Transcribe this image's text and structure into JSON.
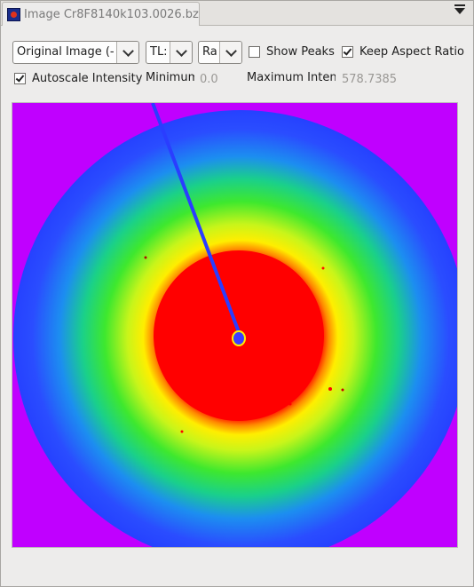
{
  "tab": {
    "title": "Image Cr8F8140k103.0026.bz2",
    "icon": "image-view-icon"
  },
  "controls": {
    "image_select": {
      "value": "Original Image (-"
    },
    "corner_select": {
      "value": "TL:"
    },
    "scale_select": {
      "value": "Ra"
    },
    "show_peaks": {
      "label": "Show Peaks",
      "checked": false
    },
    "keep_aspect": {
      "label": "Keep Aspect Ratio",
      "checked": true
    },
    "autoscale": {
      "label": "Autoscale Intensity",
      "checked": true
    },
    "minimum": {
      "label": "Minimum",
      "value": "0.0"
    },
    "maximum": {
      "label": "Maximum Inten",
      "value": "578.7385"
    }
  },
  "image": {
    "description_colors": {
      "background": "#c000ff",
      "outer": "#2a45ff",
      "middle": "#1ee82a",
      "inner": "#ffff00",
      "core": "#ff0000"
    }
  }
}
